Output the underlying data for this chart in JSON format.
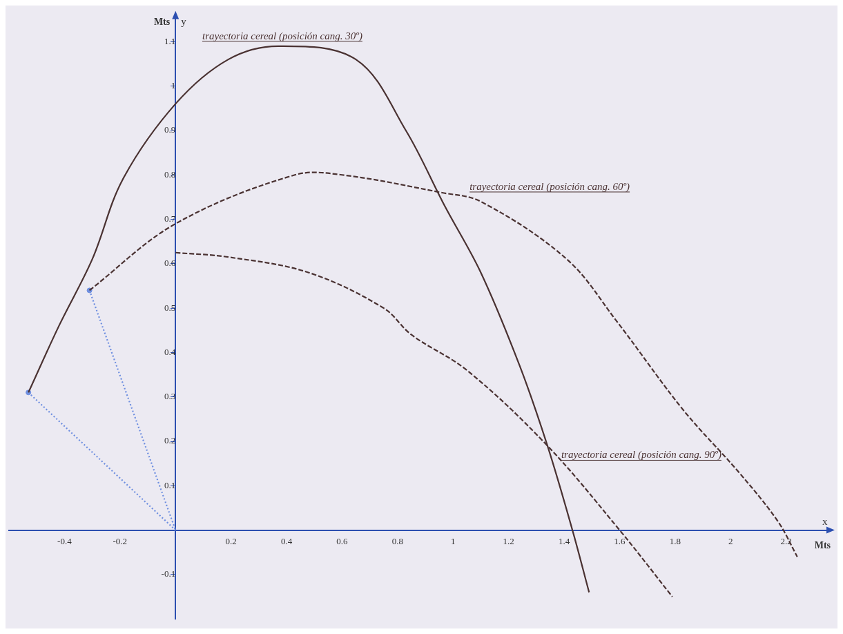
{
  "chart_data": {
    "type": "line",
    "xlabel": "x",
    "ylabel": "y",
    "annotations": [
      "Mts",
      "Mts"
    ],
    "xlim": [
      -0.6,
      2.36
    ],
    "ylim": [
      -0.2,
      1.16
    ],
    "xticks": [
      -0.4,
      -0.2,
      0.2,
      0.4,
      0.6,
      0.8,
      1,
      1.2,
      1.4,
      1.6,
      1.8,
      2,
      2.2
    ],
    "yticks": [
      -0.1,
      0.1,
      0.2,
      0.3,
      0.4,
      0.5,
      0.6,
      0.7,
      0.8,
      0.9,
      1,
      1.1
    ],
    "grid": false,
    "legend": false,
    "series": [
      {
        "name": "trayectoria cereal (posición cang. 30º)",
        "color": "#4a3232",
        "line_style": "solid",
        "marker": "none",
        "x": [
          -0.53,
          -0.42,
          -0.3,
          -0.19,
          0,
          0.19,
          0.37,
          0.65,
          0.83,
          0.97,
          1.1,
          1.24,
          1.34,
          1.43,
          1.49
        ],
        "values": [
          0.31,
          0.46,
          0.61,
          0.79,
          0.96,
          1.06,
          1.09,
          1.06,
          0.9,
          0.73,
          0.58,
          0.37,
          0.19,
          0,
          -0.14
        ]
      },
      {
        "name": "trayectoria cereal (posición cang. 60º)",
        "color": "#4a3232",
        "line_style": "dashed",
        "marker": "none",
        "x": [
          -0.31,
          0,
          0.43,
          0.6,
          0.96,
          1.1,
          1.41,
          1.59,
          1.83,
          2.03,
          2.17,
          2.24
        ],
        "values": [
          0.54,
          0.69,
          0.8,
          0.8,
          0.76,
          0.74,
          0.61,
          0.47,
          0.27,
          0.13,
          0.02,
          -0.06
        ]
      },
      {
        "name": "trayectoria cereal (posición cang. 90º)",
        "color": "#4a3232",
        "line_style": "dashed",
        "marker": "none",
        "x": [
          0,
          0.19,
          0.48,
          0.75,
          0.85,
          1.05,
          1.34,
          1.6,
          1.79
        ],
        "values": [
          0.625,
          0.615,
          0.58,
          0.5,
          0.44,
          0.36,
          0.19,
          0,
          -0.15
        ]
      },
      {
        "type": "line",
        "color": "#6f8fe0",
        "line_style": "dotted",
        "marker": "none",
        "x": [
          -0.53,
          0
        ],
        "values": [
          0.31,
          0
        ]
      },
      {
        "type": "line",
        "color": "#6f8fe0",
        "line_style": "dotted",
        "marker": "none",
        "x": [
          -0.31,
          0
        ],
        "values": [
          0.54,
          0
        ]
      },
      {
        "type": "scatter",
        "color": "#6f8fe0",
        "marker": "circle",
        "x": [
          -0.53,
          -0.31
        ],
        "values": [
          0.31,
          0.54
        ]
      }
    ]
  }
}
